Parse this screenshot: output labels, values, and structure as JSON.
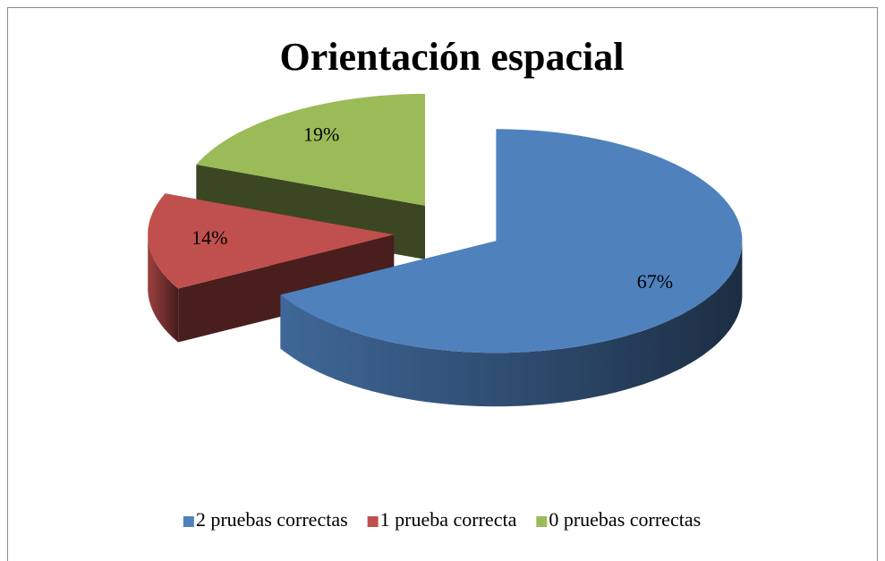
{
  "chart_data": {
    "type": "pie3d",
    "title": "Orientación espacial",
    "categories": [
      "2 pruebas correctas",
      "1 prueba correcta",
      "0 pruebas correctas"
    ],
    "values": [
      67,
      14,
      19
    ],
    "value_labels": [
      "67%",
      "14%",
      "19%"
    ],
    "colors": [
      "#4f81bd",
      "#c0504d",
      "#9bbb59"
    ],
    "legend": "bottom"
  }
}
